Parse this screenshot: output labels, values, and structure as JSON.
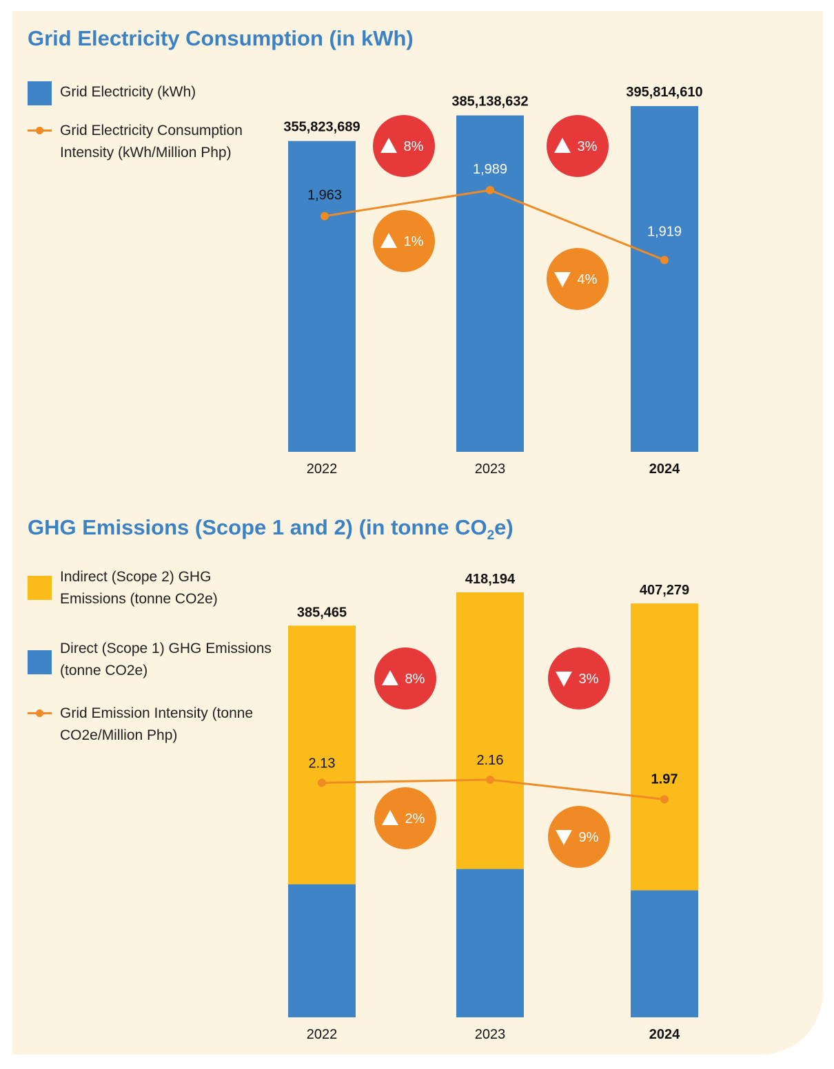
{
  "colors": {
    "blue": "#3f84c6",
    "yellow": "#fbbb1b",
    "orange": "#f08a24",
    "red": "#e63a3a",
    "title": "#3b82c4",
    "panel": "#fdf3e1"
  },
  "chart_data": [
    {
      "type": "bar",
      "title": "Grid Electricity Consumption (in kWh)",
      "categories": [
        "2022",
        "2023",
        "2024"
      ],
      "bold_category": "2024",
      "series": [
        {
          "name": "Grid Electricity (kWh)",
          "kind": "bar",
          "color": "#3f84c6",
          "values": [
            355823689,
            385138632,
            395814610
          ],
          "labels": [
            "355,823,689",
            "385,138,632",
            "395,814,610"
          ]
        },
        {
          "name": "Grid Electricity Consumption Intensity (kWh/Million Php)",
          "kind": "line",
          "color": "#f08a24",
          "values": [
            1963,
            1989,
            1919
          ],
          "labels": [
            "1,963",
            "1,989",
            "1,919"
          ]
        }
      ],
      "changes": [
        {
          "series": "bar",
          "between": [
            "2022",
            "2023"
          ],
          "direction": "up",
          "text": "8%",
          "color": "#e63a3a"
        },
        {
          "series": "bar",
          "between": [
            "2023",
            "2024"
          ],
          "direction": "up",
          "text": "3%",
          "color": "#e63a3a"
        },
        {
          "series": "line",
          "between": [
            "2022",
            "2023"
          ],
          "direction": "up",
          "text": "1%",
          "color": "#f08a24"
        },
        {
          "series": "line",
          "between": [
            "2023",
            "2024"
          ],
          "direction": "down",
          "text": "4%",
          "color": "#f08a24"
        }
      ]
    },
    {
      "type": "stacked_bar",
      "title": "GHG Emissions (Scope 1 and 2) (in tonne CO",
      "title_sub": "2",
      "title_end": "e)",
      "categories": [
        "2022",
        "2023",
        "2024"
      ],
      "bold_category": "2024",
      "series": [
        {
          "name": "Direct (Scope 1) GHG Emissions (tonne CO2e)",
          "kind": "bar",
          "color": "#3f84c6",
          "values": [
            131000,
            146000,
            125000
          ]
        },
        {
          "name": "Indirect (Scope 2) GHG Emissions (tonne CO2e)",
          "kind": "bar",
          "color": "#fbbb1b",
          "values": [
            254465,
            272194,
            282279
          ]
        },
        {
          "name": "Grid Emission Intensity (tonne CO2e/Million Php)",
          "kind": "line",
          "color": "#f08a24",
          "values": [
            2.13,
            2.16,
            1.97
          ],
          "labels": [
            "2.13",
            "2.16",
            "1.97"
          ]
        }
      ],
      "totals": [
        385465,
        418194,
        407279
      ],
      "total_labels": [
        "385,465",
        "418,194",
        "407,279"
      ],
      "changes": [
        {
          "series": "bar",
          "between": [
            "2022",
            "2023"
          ],
          "direction": "up",
          "text": "8%",
          "color": "#e63a3a"
        },
        {
          "series": "bar",
          "between": [
            "2023",
            "2024"
          ],
          "direction": "down",
          "text": "3%",
          "color": "#e63a3a"
        },
        {
          "series": "line",
          "between": [
            "2022",
            "2023"
          ],
          "direction": "up",
          "text": "2%",
          "color": "#f08a24"
        },
        {
          "series": "line",
          "between": [
            "2023",
            "2024"
          ],
          "direction": "down",
          "text": "9%",
          "color": "#f08a24"
        }
      ]
    }
  ],
  "legend1": [
    {
      "label": "Grid Electricity (kWh)",
      "kind": "box",
      "color": "#3f84c6"
    },
    {
      "label": "Grid Electricity Consumption Intensity (kWh/Million Php)",
      "kind": "line",
      "color": "#f08a24"
    }
  ],
  "legend2": [
    {
      "label": "Indirect (Scope 2) GHG Emissions (tonne CO2e)",
      "kind": "box",
      "color": "#fbbb1b"
    },
    {
      "label": "Direct (Scope 1) GHG Emissions (tonne CO2e)",
      "kind": "box",
      "color": "#3f84c6"
    },
    {
      "label": "Grid Emission Intensity (tonne CO2e/Million Php)",
      "kind": "line",
      "color": "#f08a24"
    }
  ]
}
